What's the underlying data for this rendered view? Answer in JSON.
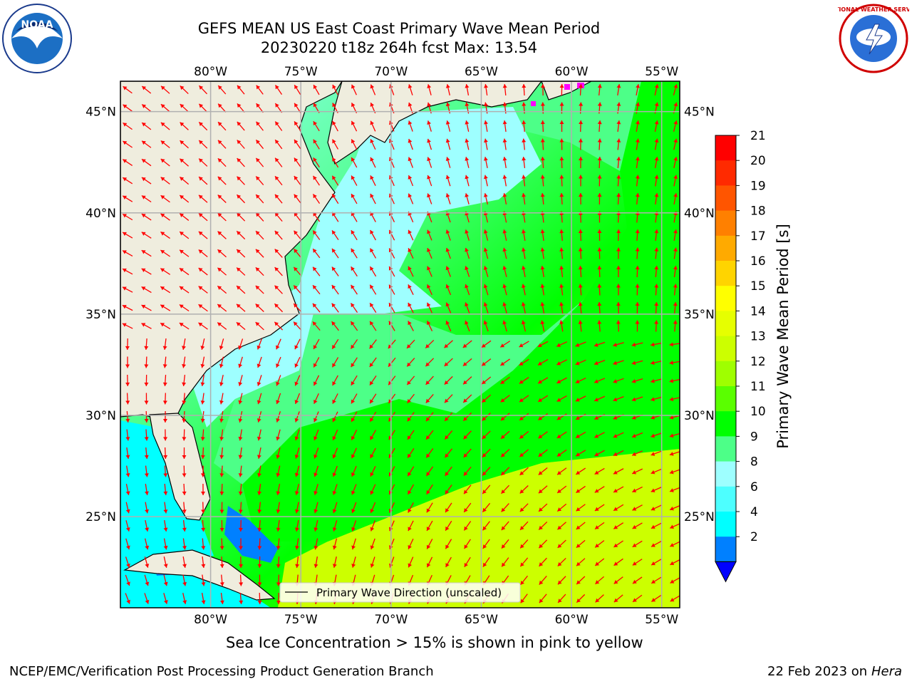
{
  "title": {
    "line1": "GEFS MEAN US East Coast Primary Wave Mean Period",
    "line2": "20230220 t18z 264h fcst   Max: 13.54"
  },
  "logos": [
    {
      "name": "noaa-logo",
      "text": "NOAA"
    },
    {
      "name": "nws-logo",
      "text": "NATIONAL WEATHER SERVICE"
    }
  ],
  "map": {
    "lon_ticks": [
      "80°W",
      "75°W",
      "70°W",
      "65°W",
      "60°W",
      "55°W"
    ],
    "lat_ticks": [
      "45°N",
      "40°N",
      "35°N",
      "30°N",
      "25°N"
    ],
    "lon_values": [
      -80,
      -75,
      -70,
      -65,
      -60,
      -55
    ],
    "lat_values": [
      45,
      40,
      35,
      30,
      25
    ],
    "extent": {
      "lon": [
        -85,
        -54
      ],
      "lat": [
        20.5,
        46.5
      ]
    },
    "legend_label": "Primary Wave Direction (unscaled)",
    "colors": {
      "land": "#efedde",
      "arrow": "#ff0000",
      "grid": "#b0b0b0",
      "ice": "#ff00ff"
    }
  },
  "colorbar": {
    "label": "Primary Wave Mean Period [s]",
    "ticks": [
      "21",
      "20",
      "19",
      "18",
      "17",
      "16",
      "15",
      "14",
      "13",
      "12",
      "11",
      "10",
      "9",
      "8",
      "6",
      "4",
      "2"
    ],
    "colors_top_down": [
      "#ff0000",
      "#ff2a00",
      "#ff5500",
      "#ff8000",
      "#ffaa00",
      "#ffd400",
      "#ffff00",
      "#e6ff00",
      "#ccff00",
      "#9fff00",
      "#5aff00",
      "#00ff00",
      "#4dff88",
      "#9effff",
      "#4dffff",
      "#00ffff",
      "#0080ff",
      "#0000ff"
    ]
  },
  "caption": "Sea Ice Concentration > 15% is shown in pink to yellow",
  "footer": {
    "left": "NCEP/EMC/Verification Post Processing Product Generation Branch",
    "right_date": "22 Feb 2023 on",
    "right_machine": "Hera"
  }
}
